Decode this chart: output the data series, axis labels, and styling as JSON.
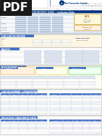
{
  "bg_color": "#ffffff",
  "page_bg": "#ffffff",
  "pdf_bg": "#1a1a1a",
  "pdf_text": "#ffffff",
  "pdf_label": "PDF",
  "header_right": "The Concrete Centre",
  "subtitle": "TCC42 BS EN 1992-1 (2004)  -  Continuous Slabs",
  "blue_header": "#003580",
  "blue_section": "#4472C4",
  "light_blue_row": "#dce6f1",
  "tan_section": "#f2e8d0",
  "yellow_section": "#ffffcc",
  "white": "#ffffff",
  "grid_line": "#cccccc",
  "text_dark": "#222222",
  "red_text": "#cc0000",
  "blue_cell": "#b8cce4",
  "orange_cell": "#ffc000",
  "section_header_bg": "#4472C4",
  "section2_bg": "#dce6f1",
  "section3_bg": "#fdf6e3",
  "section4_bg": "#ffffff",
  "section5_bg": "#ffffee",
  "section6_bg": "#f5f5ff",
  "section7_bg": "#f0f8ff"
}
